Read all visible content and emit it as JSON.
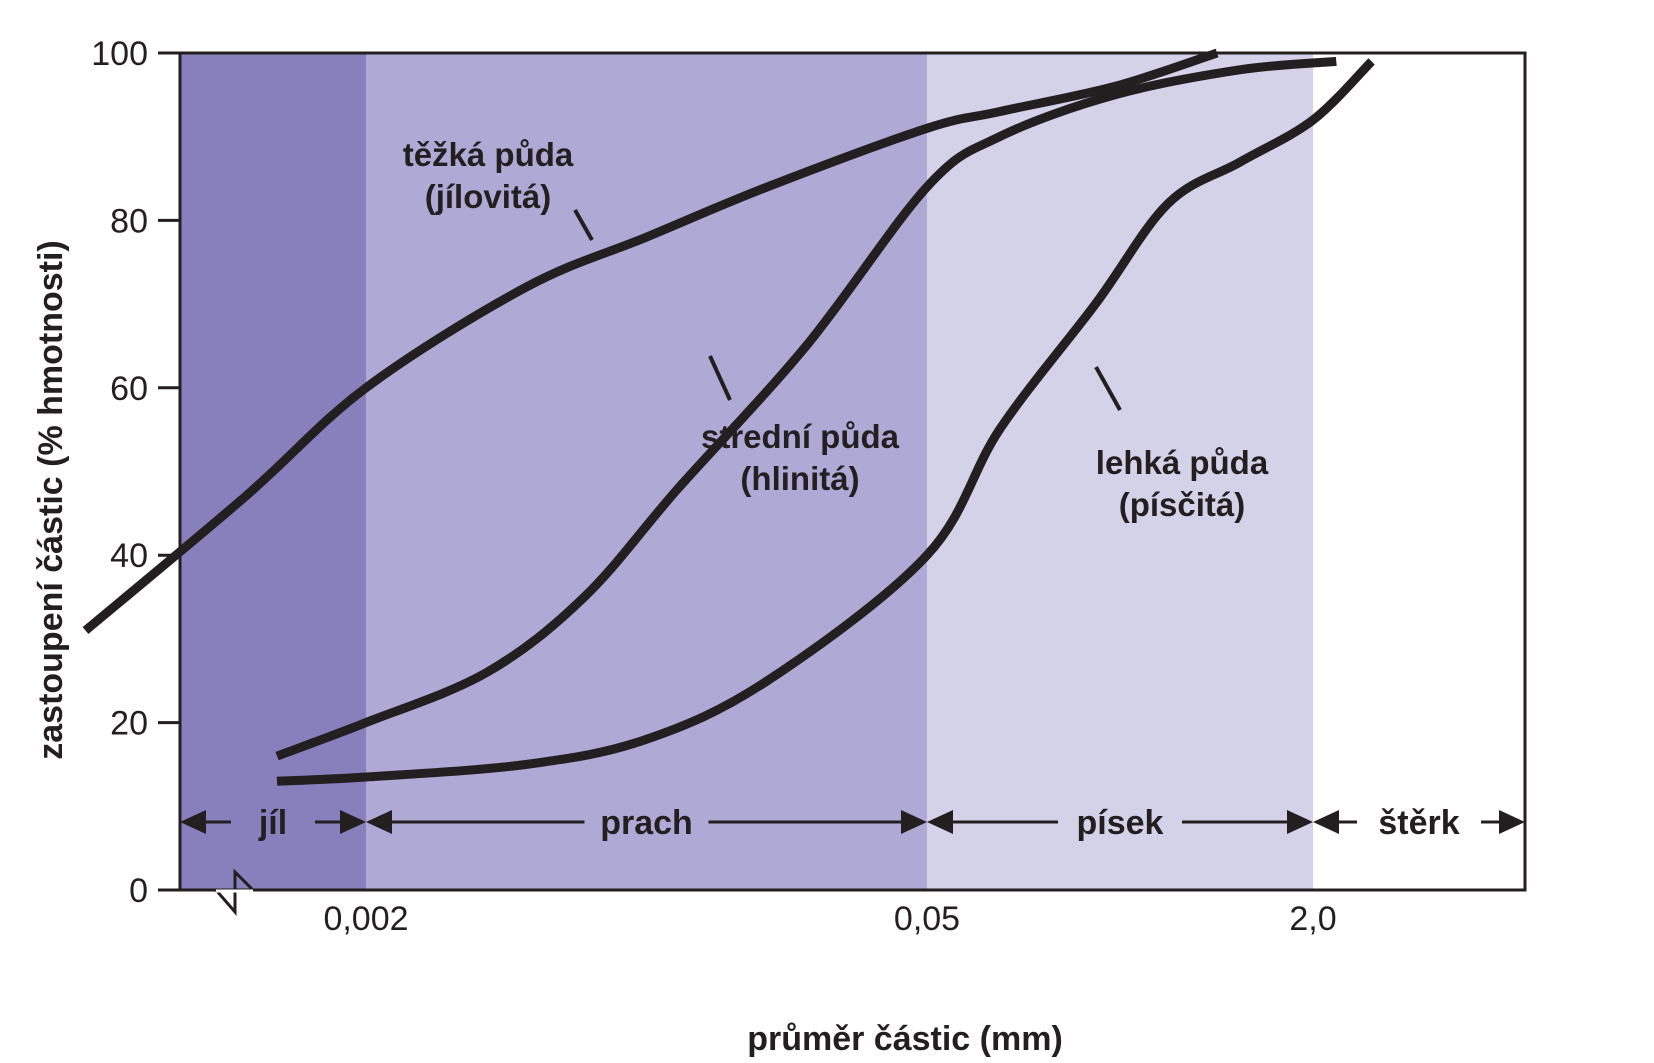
{
  "chart_data": {
    "type": "line",
    "title": "",
    "xlabel": "průměr částic (mm)",
    "ylabel": "zastoupení částic (% hmotnosti)",
    "ylim": [
      0,
      100
    ],
    "y_ticks": [
      "0",
      "20",
      "40",
      "60",
      "80",
      "100"
    ],
    "x_ticks": [
      "0,002",
      "0,05",
      "2,0"
    ],
    "x_scale": "log",
    "grid": false,
    "bands": [
      {
        "name": "jíl",
        "color": "#8780bc"
      },
      {
        "name": "prach",
        "color": "#aeaad5"
      },
      {
        "name": "písek",
        "color": "#d4d2e8"
      },
      {
        "name": "štěrk",
        "color": "#ffffff"
      }
    ],
    "series": [
      {
        "name": "těžká půda (jílovitá)",
        "label_lines": [
          "těžká půda",
          "(jílovitá)"
        ],
        "x": [
          0.0004,
          0.001,
          0.002,
          0.005,
          0.01,
          0.02,
          0.05,
          0.1,
          0.3,
          0.8
        ],
        "values": [
          31,
          47,
          60,
          72,
          78,
          84,
          91,
          93,
          96,
          100
        ]
      },
      {
        "name": "střední půda (hlinitá)",
        "label_lines": [
          "střední půda",
          "(hlinitá)"
        ],
        "x": [
          0.0012,
          0.002,
          0.004,
          0.007,
          0.012,
          0.025,
          0.05,
          0.1,
          0.3,
          1.0,
          2.5
        ],
        "values": [
          16,
          20,
          26,
          35,
          48,
          65,
          84,
          90,
          95,
          98,
          99
        ]
      },
      {
        "name": "lehká půda (písčitá)",
        "label_lines": [
          "lehká půda",
          "(písčitá)"
        ],
        "x": [
          0.0012,
          0.002,
          0.005,
          0.01,
          0.02,
          0.05,
          0.1,
          0.25,
          0.5,
          1.0,
          2.0,
          3.5
        ],
        "values": [
          13,
          13.5,
          15,
          18,
          25,
          40,
          55,
          70,
          82,
          87,
          92,
          99
        ]
      }
    ]
  }
}
